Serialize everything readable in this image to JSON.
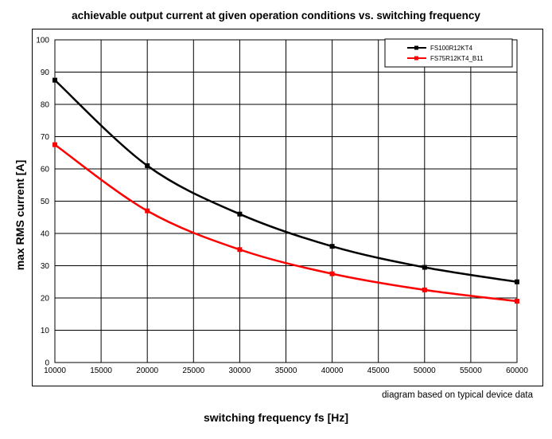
{
  "chart_data": {
    "type": "line",
    "title": "achievable output current at given operation conditions vs. switching frequency",
    "xlabel": "switching frequency fs [Hz]",
    "ylabel": "max RMS current [A]",
    "note": "diagram based on typical device data",
    "xlim": [
      10000,
      60000
    ],
    "ylim": [
      0,
      100
    ],
    "xticks": [
      10000,
      15000,
      20000,
      25000,
      30000,
      35000,
      40000,
      45000,
      50000,
      55000,
      60000
    ],
    "yticks": [
      0,
      10,
      20,
      30,
      40,
      50,
      60,
      70,
      80,
      90,
      100
    ],
    "grid": true,
    "legend": "top-right",
    "x": [
      10000,
      20000,
      30000,
      40000,
      50000,
      60000
    ],
    "series": [
      {
        "name": "FS100R12KT4",
        "color": "#000000",
        "values": [
          87.5,
          61,
          46,
          36,
          29.5,
          25
        ]
      },
      {
        "name": "FS75R12KT4_B11",
        "color": "#ff0000",
        "values": [
          67.5,
          47,
          35,
          27.5,
          22.5,
          19
        ]
      }
    ]
  }
}
